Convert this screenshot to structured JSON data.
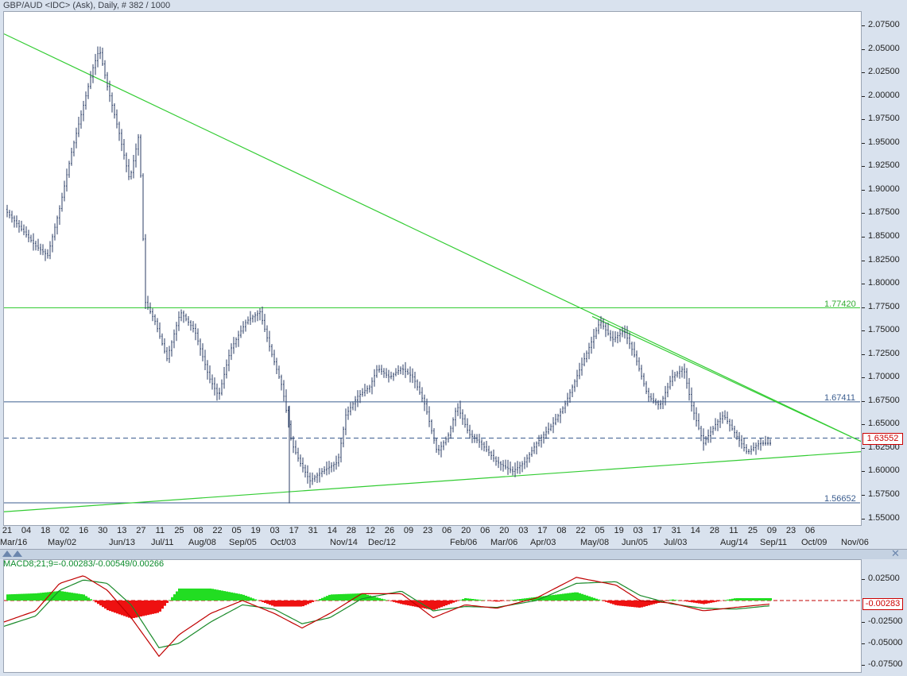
{
  "header": {
    "title": "GBP/AUD <IDC> (Ask), Daily, # 382 / 1000"
  },
  "price_axis": [
    "2.07500",
    "2.05000",
    "2.02500",
    "2.00000",
    "1.97500",
    "1.95000",
    "1.92500",
    "1.90000",
    "1.87500",
    "1.85000",
    "1.82500",
    "1.80000",
    "1.77500",
    "1.75000",
    "1.72500",
    "1.70000",
    "1.67500",
    "1.65000",
    "1.62500",
    "1.60000",
    "1.57500",
    "1.55000"
  ],
  "x_axis": {
    "days": [
      "21",
      "04",
      "18",
      "02",
      "16",
      "30",
      "13",
      "27",
      "11",
      "25",
      "08",
      "22",
      "05",
      "19",
      "03",
      "17",
      "31",
      "14",
      "28",
      "12",
      "26",
      "09",
      "23",
      "06",
      "20",
      "06",
      "20",
      "03",
      "17",
      "08",
      "22",
      "05",
      "19",
      "03",
      "17",
      "31",
      "14",
      "28",
      "11",
      "25",
      "09",
      "23",
      "06"
    ],
    "months": [
      "Mar/16",
      "May/02",
      "Jun/13",
      "Jul/11",
      "Aug/08",
      "Sep/05",
      "Oct/03",
      "Nov/14",
      "Dec/12",
      "Feb/06",
      "Mar/06",
      "Apr/03",
      "May/08",
      "Jun/05",
      "Jul/03",
      "Aug/14",
      "Sep/11",
      "Oct/09",
      "Nov/06"
    ]
  },
  "levels": {
    "resistance_top": "1.77420",
    "resistance_mid": "1.67411",
    "support": "1.56652",
    "last_price": "1.63552"
  },
  "macd": {
    "label": "MACD8;21;9=-0.00283/-0.00549/0.00266",
    "axis": [
      "0.02500",
      "-0.02500",
      "-0.05000",
      "-0.07500"
    ],
    "current": "-0.00283"
  },
  "colors": {
    "trendline": "#33cc33",
    "level_line": "#3b5d8f",
    "candle": "#2b3e66",
    "macd_line": "#c00000",
    "signal_line": "#1a8a2a",
    "hist_pos": "#22dd22",
    "hist_neg": "#ee1111"
  },
  "chart_data": [
    {
      "type": "candlestick",
      "title": "GBP/AUD <IDC> (Ask), Daily",
      "ylim": [
        1.545,
        2.085
      ],
      "approx_close_path": [
        [
          0,
          1.88
        ],
        [
          20,
          1.86
        ],
        [
          40,
          1.84
        ],
        [
          55,
          1.83
        ],
        [
          70,
          1.88
        ],
        [
          85,
          1.94
        ],
        [
          100,
          1.99
        ],
        [
          112,
          2.03
        ],
        [
          120,
          2.05
        ],
        [
          130,
          2.01
        ],
        [
          145,
          1.96
        ],
        [
          158,
          1.91
        ],
        [
          170,
          1.96
        ],
        [
          178,
          1.78
        ],
        [
          190,
          1.76
        ],
        [
          205,
          1.72
        ],
        [
          222,
          1.77
        ],
        [
          240,
          1.75
        ],
        [
          258,
          1.7
        ],
        [
          270,
          1.68
        ],
        [
          285,
          1.73
        ],
        [
          305,
          1.76
        ],
        [
          322,
          1.77
        ],
        [
          335,
          1.73
        ],
        [
          350,
          1.69
        ],
        [
          362,
          1.63
        ],
        [
          372,
          1.61
        ],
        [
          385,
          1.59
        ],
        [
          400,
          1.6
        ],
        [
          420,
          1.61
        ],
        [
          430,
          1.66
        ],
        [
          445,
          1.68
        ],
        [
          460,
          1.69
        ],
        [
          470,
          1.71
        ],
        [
          485,
          1.7
        ],
        [
          500,
          1.71
        ],
        [
          515,
          1.7
        ],
        [
          530,
          1.67
        ],
        [
          545,
          1.62
        ],
        [
          560,
          1.64
        ],
        [
          570,
          1.67
        ],
        [
          585,
          1.64
        ],
        [
          600,
          1.63
        ],
        [
          620,
          1.61
        ],
        [
          640,
          1.6
        ],
        [
          655,
          1.61
        ],
        [
          670,
          1.63
        ],
        [
          690,
          1.65
        ],
        [
          705,
          1.67
        ],
        [
          720,
          1.7
        ],
        [
          735,
          1.73
        ],
        [
          750,
          1.76
        ],
        [
          765,
          1.74
        ],
        [
          780,
          1.75
        ],
        [
          795,
          1.72
        ],
        [
          810,
          1.68
        ],
        [
          825,
          1.67
        ],
        [
          840,
          1.7
        ],
        [
          855,
          1.71
        ],
        [
          865,
          1.67
        ],
        [
          880,
          1.63
        ],
        [
          895,
          1.65
        ],
        [
          905,
          1.66
        ],
        [
          920,
          1.64
        ],
        [
          935,
          1.62
        ],
        [
          950,
          1.63
        ],
        [
          965,
          1.63
        ]
      ],
      "trendlines": [
        {
          "name": "upper",
          "from": [
            0,
            2.066
          ],
          "to": [
            1078,
            1.632
          ]
        },
        {
          "name": "lower",
          "from": [
            0,
            1.557
          ],
          "to": [
            1078,
            1.621
          ]
        },
        {
          "name": "upper-right",
          "from": [
            740,
            1.765
          ],
          "to": [
            1078,
            1.632
          ]
        }
      ],
      "horizontal_levels": [
        1.7742,
        1.67411,
        1.56652,
        1.63552
      ]
    },
    {
      "type": "line",
      "title": "MACD8;21;9",
      "ylim": [
        -0.085,
        0.04
      ],
      "series": [
        {
          "name": "MACD",
          "values": [
            [
              0,
              -0.025
            ],
            [
              40,
              -0.012
            ],
            [
              70,
              0.02
            ],
            [
              100,
              0.029
            ],
            [
              130,
              0.012
            ],
            [
              160,
              -0.02
            ],
            [
              195,
              -0.065
            ],
            [
              220,
              -0.04
            ],
            [
              260,
              -0.015
            ],
            [
              300,
              0.0
            ],
            [
              340,
              -0.015
            ],
            [
              375,
              -0.032
            ],
            [
              410,
              -0.015
            ],
            [
              450,
              0.008
            ],
            [
              500,
              0.008
            ],
            [
              540,
              -0.02
            ],
            [
              580,
              -0.005
            ],
            [
              620,
              -0.009
            ],
            [
              670,
              0.003
            ],
            [
              720,
              0.027
            ],
            [
              770,
              0.018
            ],
            [
              800,
              0.0
            ],
            [
              840,
              -0.003
            ],
            [
              880,
              -0.012
            ],
            [
              920,
              -0.008
            ],
            [
              965,
              -0.004
            ]
          ]
        },
        {
          "name": "Signal",
          "values": [
            [
              0,
              -0.03
            ],
            [
              40,
              -0.018
            ],
            [
              70,
              0.012
            ],
            [
              100,
              0.024
            ],
            [
              130,
              0.02
            ],
            [
              160,
              -0.005
            ],
            [
              195,
              -0.055
            ],
            [
              220,
              -0.05
            ],
            [
              260,
              -0.025
            ],
            [
              300,
              -0.005
            ],
            [
              340,
              -0.01
            ],
            [
              375,
              -0.027
            ],
            [
              410,
              -0.02
            ],
            [
              450,
              0.002
            ],
            [
              500,
              0.011
            ],
            [
              540,
              -0.012
            ],
            [
              580,
              -0.007
            ],
            [
              620,
              -0.008
            ],
            [
              670,
              0.0
            ],
            [
              720,
              0.02
            ],
            [
              770,
              0.022
            ],
            [
              800,
              0.006
            ],
            [
              840,
              -0.004
            ],
            [
              880,
              -0.009
            ],
            [
              920,
              -0.01
            ],
            [
              965,
              -0.006
            ]
          ]
        }
      ]
    }
  ]
}
